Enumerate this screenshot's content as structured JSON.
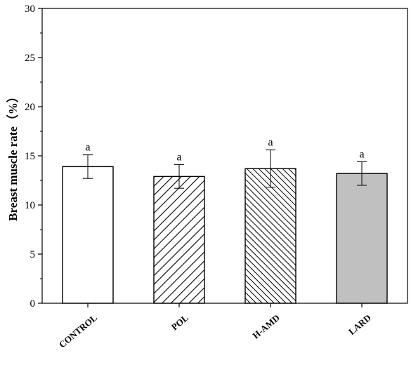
{
  "chart_data": {
    "type": "bar",
    "title": "",
    "xlabel": "",
    "ylabel": "Breast muscle rate（%）",
    "ylim": [
      0,
      30
    ],
    "yticks": [
      0,
      5,
      10,
      15,
      20,
      25,
      30
    ],
    "grid": false,
    "legend": "none",
    "categories": [
      "CONTROL",
      "POL",
      "H-AMD",
      "LARD"
    ],
    "series": [
      {
        "values": [
          13.9,
          12.9,
          13.7,
          13.2
        ],
        "errors": [
          1.2,
          1.2,
          1.9,
          1.2
        ],
        "significance": [
          "a",
          "a",
          "a",
          "a"
        ]
      }
    ],
    "bar_styles": [
      {
        "fill": "#ffffff",
        "pattern": "none"
      },
      {
        "fill": "#ffffff",
        "pattern": "diagonal-wide"
      },
      {
        "fill": "#ffffff",
        "pattern": "diagonal-dense"
      },
      {
        "fill": "#c0c0c0",
        "pattern": "none"
      }
    ]
  }
}
